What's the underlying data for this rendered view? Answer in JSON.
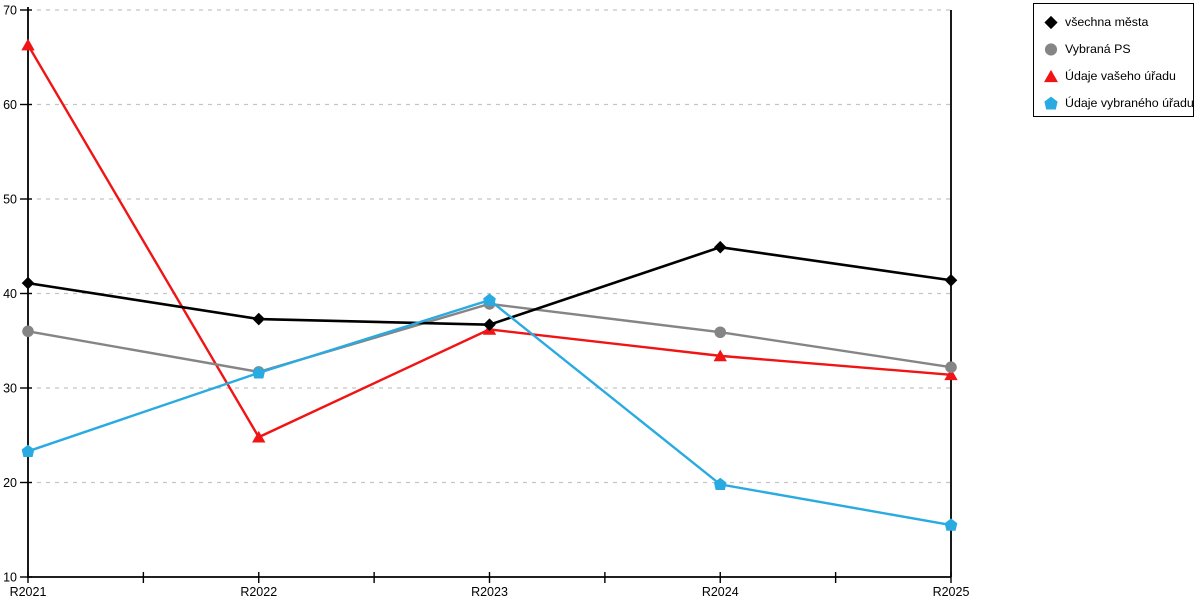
{
  "chart_data": {
    "type": "line",
    "title": "",
    "xlabel": "",
    "ylabel": "",
    "categories": [
      "R2021",
      "R2022",
      "R2023",
      "R2024",
      "R2025"
    ],
    "series": [
      {
        "name": "všechna města",
        "color": "#000000",
        "marker": "diamond",
        "values": [
          41.1,
          37.3,
          36.7,
          44.9,
          41.4
        ]
      },
      {
        "name": "Vybraná PS",
        "color": "#858585",
        "marker": "circle",
        "values": [
          36.0,
          31.7,
          38.9,
          35.9,
          32.2
        ]
      },
      {
        "name": "Údaje vašeho úřadu",
        "color": "#F01414",
        "marker": "triangle",
        "values": [
          66.3,
          24.8,
          36.2,
          33.4,
          31.4
        ]
      },
      {
        "name": "Údaje vybraného úřadu",
        "color": "#29ABE2",
        "marker": "pentagon",
        "values": [
          23.3,
          31.6,
          39.3,
          19.8,
          15.5
        ]
      }
    ],
    "ylim": [
      10,
      70
    ],
    "y_ticks": [
      10,
      20,
      30,
      40,
      50,
      60,
      70
    ],
    "grid": "horizontal dashed",
    "legend_position": "top-right"
  },
  "colors": {
    "background": "#ffffff",
    "axis": "#000000",
    "grid": "#c4c4c4",
    "legend_border": "#000000"
  }
}
